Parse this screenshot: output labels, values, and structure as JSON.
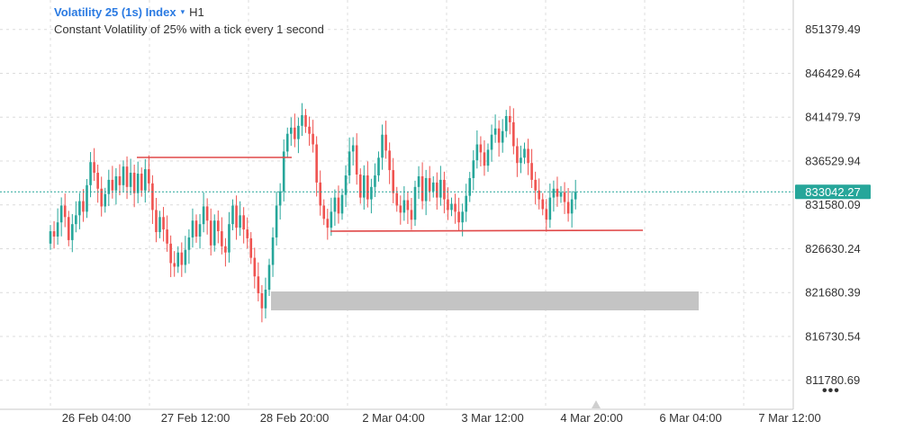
{
  "header": {
    "title": "Volatility 25 (1s) Index",
    "timeframe": "H1",
    "subtitle": "Constant Volatility of 25% with a tick every 1 second"
  },
  "colors": {
    "up": "#26a69a",
    "down": "#ef5350",
    "line": "#e04848",
    "zone": "#c4c4c4",
    "price_tag": "#26a69a",
    "grid": "#dcdcdc",
    "title": "#2a7ae2"
  },
  "chart_data": {
    "type": "candlestick",
    "x_ticks": [
      "26 Feb 04:00",
      "27 Feb 12:00",
      "28 Feb 20:00",
      "2 Mar 04:00",
      "3 Mar 12:00",
      "4 Mar 20:00",
      "6 Mar 04:00",
      "7 Mar 12:00"
    ],
    "y_ticks": [
      851379.49,
      846429.64,
      841479.79,
      836529.94,
      831580.09,
      826630.24,
      821680.39,
      816730.54,
      811780.69
    ],
    "ylim": [
      808500,
      854700
    ],
    "current_price": 833042.27,
    "grid": true,
    "candle_count": 150,
    "candles": [
      [
        827200,
        828600
      ],
      [
        828600,
        828000
      ],
      [
        828000,
        829600
      ],
      [
        829600,
        831500
      ],
      [
        831500,
        830200
      ],
      [
        830200,
        827600
      ],
      [
        827600,
        829400
      ],
      [
        829400,
        830400
      ],
      [
        830400,
        832000
      ],
      [
        832000,
        830800
      ],
      [
        830800,
        833800
      ],
      [
        833800,
        836400
      ],
      [
        836400,
        835200
      ],
      [
        835200,
        833400
      ],
      [
        833400,
        831400
      ],
      [
        831400,
        832800
      ],
      [
        832800,
        834400
      ],
      [
        834400,
        833200
      ],
      [
        833200,
        834800
      ],
      [
        834800,
        833800
      ],
      [
        833800,
        835900
      ],
      [
        835900,
        833600
      ],
      [
        833600,
        835200
      ],
      [
        835200,
        832900
      ],
      [
        832900,
        835100
      ],
      [
        835100,
        833200
      ],
      [
        833200,
        835600
      ],
      [
        835600,
        834000
      ],
      [
        834000,
        831000
      ],
      [
        831000,
        828500
      ],
      [
        828500,
        830200
      ],
      [
        830200,
        828800
      ],
      [
        828800,
        827200
      ],
      [
        827200,
        825000
      ],
      [
        825000,
        824600
      ],
      [
        824600,
        826200
      ],
      [
        826200,
        824800
      ],
      [
        824800,
        826500
      ],
      [
        826500,
        827900
      ],
      [
        827900,
        829800
      ],
      [
        829800,
        828000
      ],
      [
        828000,
        829400
      ],
      [
        829400,
        831400
      ],
      [
        831400,
        829800
      ],
      [
        829800,
        827000
      ],
      [
        827000,
        829800
      ],
      [
        829800,
        828600
      ],
      [
        828600,
        826900
      ],
      [
        826900,
        826200
      ],
      [
        826200,
        829400
      ],
      [
        829400,
        831500
      ],
      [
        831500,
        829000
      ],
      [
        829000,
        830400
      ],
      [
        830400,
        828800
      ],
      [
        828800,
        827800
      ],
      [
        827800,
        825600
      ],
      [
        825600,
        823500
      ],
      [
        823500,
        821600
      ],
      [
        821600,
        819900
      ],
      [
        819900,
        822000
      ],
      [
        822000,
        824800
      ],
      [
        824800,
        827900
      ],
      [
        827900,
        831500
      ],
      [
        831500,
        833100
      ],
      [
        833100,
        837600
      ],
      [
        837600,
        839600
      ],
      [
        839600,
        840300
      ],
      [
        840300,
        839000
      ],
      [
        839000,
        840500
      ],
      [
        840500,
        841700
      ],
      [
        841700,
        840400
      ],
      [
        840400,
        839600
      ],
      [
        839600,
        838400
      ],
      [
        838400,
        834100
      ],
      [
        834100,
        831500
      ],
      [
        831500,
        830000
      ],
      [
        830000,
        829000
      ],
      [
        829000,
        830800
      ],
      [
        830800,
        832400
      ],
      [
        832400,
        830600
      ],
      [
        830600,
        832700
      ],
      [
        832700,
        834900
      ],
      [
        834900,
        837600
      ],
      [
        837600,
        838300
      ],
      [
        838300,
        835000
      ],
      [
        835000,
        832400
      ],
      [
        832400,
        834900
      ],
      [
        834900,
        832200
      ],
      [
        832200,
        833600
      ],
      [
        833600,
        834900
      ],
      [
        834900,
        836900
      ],
      [
        836900,
        839500
      ],
      [
        839500,
        837700
      ],
      [
        837700,
        835500
      ],
      [
        835500,
        832900
      ],
      [
        832900,
        831500
      ],
      [
        831500,
        830700
      ],
      [
        830700,
        832100
      ],
      [
        832100,
        831000
      ],
      [
        831000,
        829900
      ],
      [
        829900,
        833600
      ],
      [
        833600,
        834800
      ],
      [
        834800,
        832000
      ],
      [
        832000,
        834600
      ],
      [
        834600,
        833100
      ],
      [
        833100,
        834100
      ],
      [
        834100,
        832400
      ],
      [
        832400,
        834400
      ],
      [
        834400,
        832200
      ],
      [
        832200,
        831000
      ],
      [
        831000,
        831700
      ],
      [
        831700,
        830800
      ],
      [
        830800,
        829600
      ],
      [
        829600,
        830800
      ],
      [
        830800,
        832600
      ],
      [
        832600,
        834600
      ],
      [
        834600,
        836600
      ],
      [
        836600,
        838400
      ],
      [
        838400,
        837500
      ],
      [
        837500,
        836000
      ],
      [
        836000,
        837800
      ],
      [
        837800,
        839500
      ],
      [
        839500,
        840200
      ],
      [
        840200,
        838600
      ],
      [
        838600,
        839900
      ],
      [
        839900,
        841600
      ],
      [
        841600,
        840900
      ],
      [
        840900,
        838200
      ],
      [
        838200,
        836300
      ],
      [
        836300,
        836900
      ],
      [
        836900,
        837900
      ],
      [
        837900,
        836300
      ],
      [
        836300,
        834400
      ],
      [
        834400,
        833200
      ],
      [
        833200,
        832200
      ],
      [
        832200,
        831100
      ],
      [
        831100,
        829900
      ],
      [
        829900,
        832400
      ],
      [
        832400,
        833400
      ],
      [
        833400,
        832500
      ],
      [
        832500,
        833000
      ],
      [
        833000,
        831900
      ],
      [
        831900,
        830600
      ],
      [
        830600,
        832200
      ],
      [
        832200,
        833040
      ]
    ]
  }
}
